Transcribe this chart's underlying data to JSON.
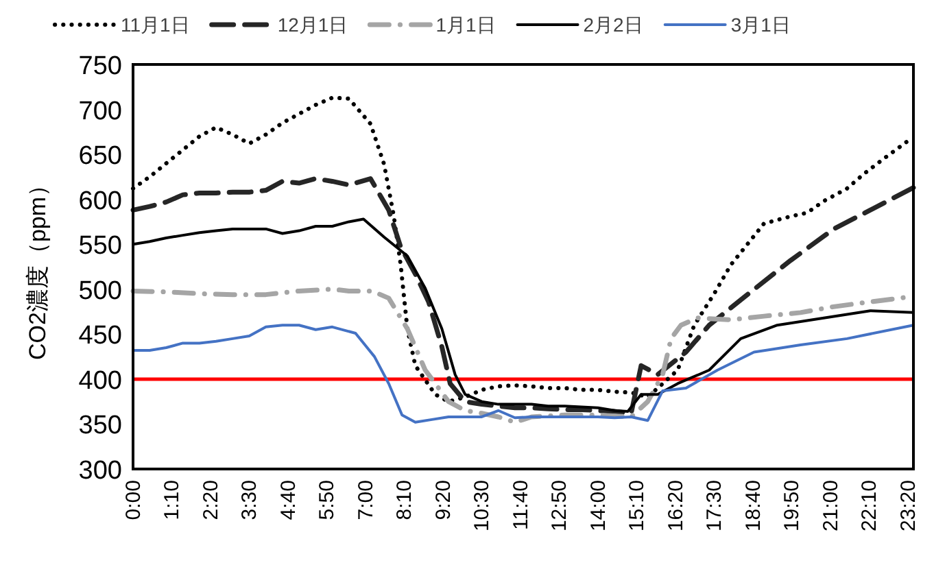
{
  "chart_data": {
    "type": "line",
    "ylabel": "CO2濃度（ppm）",
    "xlim": [
      0,
      23.5
    ],
    "ylim": [
      300,
      750
    ],
    "yticks": [
      300,
      350,
      400,
      450,
      500,
      550,
      600,
      650,
      700,
      750
    ],
    "xticks": [
      {
        "value": 0,
        "label": "0:00"
      },
      {
        "value": 1.1667,
        "label": "1:10"
      },
      {
        "value": 2.3333,
        "label": "2:20"
      },
      {
        "value": 3.5,
        "label": "3:30"
      },
      {
        "value": 4.6667,
        "label": "4:40"
      },
      {
        "value": 5.8333,
        "label": "5:50"
      },
      {
        "value": 7,
        "label": "7:00"
      },
      {
        "value": 8.1667,
        "label": "8:10"
      },
      {
        "value": 9.3333,
        "label": "9:20"
      },
      {
        "value": 10.5,
        "label": "10:30"
      },
      {
        "value": 11.6667,
        "label": "11:40"
      },
      {
        "value": 12.8333,
        "label": "12:50"
      },
      {
        "value": 14,
        "label": "14:00"
      },
      {
        "value": 15.1667,
        "label": "15:10"
      },
      {
        "value": 16.3333,
        "label": "16:20"
      },
      {
        "value": 17.5,
        "label": "17:30"
      },
      {
        "value": 18.6667,
        "label": "18:40"
      },
      {
        "value": 19.8333,
        "label": "19:50"
      },
      {
        "value": 21,
        "label": "21:00"
      },
      {
        "value": 22.1667,
        "label": "22:10"
      },
      {
        "value": 23.3333,
        "label": "23:20"
      }
    ],
    "grid": false,
    "legend": "top",
    "ref_lines": [
      {
        "axis": "y",
        "value": 400,
        "color": "#ff0000"
      }
    ],
    "series": [
      {
        "name": "11月1日",
        "color": "#000000",
        "line_style": "dotted",
        "x": [
          0,
          0.5,
          1,
          1.5,
          2,
          2.5,
          3,
          3.5,
          4,
          4.5,
          5,
          5.5,
          6,
          6.5,
          7.15,
          7.56,
          7.85,
          8.06,
          8.26,
          8.5,
          9.1,
          9.5,
          10,
          10.5,
          11,
          11.5,
          12,
          12.5,
          13,
          13.5,
          14,
          14.5,
          15,
          15.5,
          15.95,
          16.4,
          16.9,
          17.5,
          18,
          18.5,
          19,
          19.8,
          20.3,
          20.8,
          21.5,
          22,
          22.6,
          23.3
        ],
        "values": [
          612,
          625,
          640,
          655,
          670,
          680,
          672,
          662,
          672,
          685,
          695,
          705,
          713,
          712,
          684,
          639,
          582,
          527,
          456,
          415,
          383,
          375,
          380,
          388,
          392,
          393,
          392,
          390,
          390,
          388,
          388,
          386,
          385,
          380,
          395,
          410,
          460,
          495,
          527,
          550,
          573,
          581,
          585,
          598,
          612,
          628,
          645,
          664
        ]
      },
      {
        "name": "12月1日",
        "color": "#262626",
        "line_style": "dashed",
        "x": [
          0,
          0.5,
          1,
          1.5,
          2,
          2.5,
          3,
          3.5,
          4,
          4.5,
          5,
          5.5,
          6,
          6.5,
          7.15,
          7.7,
          8.06,
          8.5,
          8.9,
          9.3,
          9.55,
          10,
          10.5,
          11,
          11.5,
          12,
          12.5,
          13,
          13.5,
          14,
          14.5,
          15,
          15.3,
          15.8,
          16.65,
          17.35,
          18.4,
          19.8,
          21.1,
          22.2,
          23.5
        ],
        "values": [
          588,
          592,
          597,
          605,
          607,
          607,
          608,
          608,
          610,
          620,
          618,
          623,
          620,
          616,
          623,
          588,
          547,
          517,
          486,
          436,
          395,
          375,
          372,
          370,
          368,
          368,
          367,
          366,
          366,
          365,
          364,
          362,
          415,
          405,
          430,
          460,
          491,
          532,
          567,
          588,
          613
        ]
      },
      {
        "name": "1月1日",
        "color": "#a5a5a5",
        "line_style": "dashdot",
        "x": [
          0,
          1,
          2,
          3,
          4,
          5,
          6,
          6.5,
          7.2,
          7.7,
          8.26,
          8.8,
          9.5,
          10,
          10.5,
          11,
          11.5,
          12,
          13,
          14,
          15,
          15.5,
          15.95,
          16.2,
          16.5,
          17,
          18,
          19,
          20.1,
          21,
          22,
          23.5
        ],
        "values": [
          498,
          497,
          495,
          494,
          494,
          498,
          500,
          498,
          498,
          490,
          456,
          410,
          375,
          365,
          362,
          358,
          352,
          358,
          360,
          360,
          358,
          375,
          405,
          445,
          460,
          468,
          466,
          470,
          474,
          480,
          485,
          492
        ]
      },
      {
        "name": "2月2日",
        "color": "#000000",
        "line_style": "solid",
        "x": [
          0,
          0.5,
          1,
          1.5,
          2,
          2.5,
          3,
          3.5,
          4,
          4.5,
          5,
          5.5,
          6,
          6.5,
          6.94,
          7.56,
          8.26,
          8.8,
          9.3,
          9.7,
          10,
          10.5,
          11,
          11.5,
          12,
          12.5,
          13,
          13.5,
          14,
          14.5,
          14.9,
          15.3,
          15.8,
          16.4,
          17.35,
          18.3,
          19.4,
          20.8,
          22.2,
          23.5
        ],
        "values": [
          550,
          553,
          557,
          560,
          563,
          565,
          567,
          567,
          567,
          562,
          565,
          570,
          570,
          575,
          578,
          558,
          537,
          501,
          456,
          405,
          383,
          375,
          372,
          372,
          372,
          370,
          370,
          369,
          368,
          365,
          364,
          383,
          383,
          395,
          410,
          445,
          460,
          468,
          476,
          474
        ]
      },
      {
        "name": "3月1日",
        "color": "#4472c4",
        "line_style": "solid",
        "x": [
          0,
          0.5,
          1,
          1.5,
          2,
          2.5,
          3,
          3.5,
          4,
          4.5,
          5,
          5.5,
          6,
          6.7,
          7.27,
          7.7,
          8.1,
          8.5,
          9,
          9.5,
          10,
          10.5,
          11,
          11.5,
          12,
          13,
          14,
          14.5,
          15,
          15.5,
          15.95,
          16.65,
          17.6,
          18.7,
          20.1,
          21.5,
          23.5
        ],
        "values": [
          432,
          432,
          435,
          440,
          440,
          442,
          445,
          448,
          458,
          460,
          460,
          455,
          458,
          451,
          425,
          395,
          360,
          352,
          355,
          358,
          358,
          358,
          365,
          357,
          358,
          358,
          358,
          357,
          358,
          354,
          387,
          390,
          410,
          430,
          438,
          445,
          460
        ]
      }
    ]
  }
}
